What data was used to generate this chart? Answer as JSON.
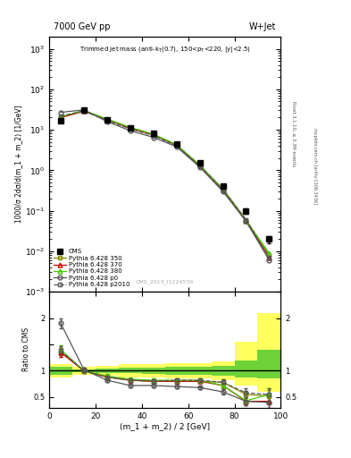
{
  "title_top": "7000 GeV pp",
  "title_right": "W+Jet",
  "ylabel_top": "1000/σ 2dσ/d(m_1 + m_2) [1/GeV]",
  "ylabel_bottom": "Ratio to CMS",
  "xlabel": "(m_1 + m_2) / 2 [GeV]",
  "watermark": "CMS_2013_I1224539",
  "rivet_text": "Rivet 3.1.10, ≥ 3.3M events",
  "mcplots_text": "mcplots.cern.ch [arXiv:1306.3436]",
  "x": [
    5,
    15,
    25,
    35,
    45,
    55,
    65,
    75,
    85,
    95
  ],
  "cms_y": [
    17,
    30,
    18,
    11,
    8,
    4.5,
    1.5,
    0.4,
    0.1,
    0.02
  ],
  "cms_yerr": [
    1.5,
    2,
    1.5,
    1.0,
    0.7,
    0.4,
    0.15,
    0.04,
    0.015,
    0.004
  ],
  "p350_y": [
    20,
    29,
    18,
    11,
    7.5,
    4.2,
    1.3,
    0.35,
    0.06,
    0.008
  ],
  "p370_y": [
    20,
    29,
    18,
    11,
    7.5,
    4.2,
    1.3,
    0.33,
    0.055,
    0.007
  ],
  "p380_y": [
    21,
    30,
    18.5,
    11.5,
    7.8,
    4.3,
    1.35,
    0.34,
    0.057,
    0.009
  ],
  "p0_y": [
    27,
    31,
    16,
    9.5,
    6.5,
    3.8,
    1.2,
    0.3,
    0.055,
    0.006
  ],
  "p2010_y": [
    22,
    29,
    17,
    10.5,
    7.2,
    4.0,
    1.3,
    0.33,
    0.06,
    0.007
  ],
  "ratio_p350": [
    1.35,
    1.0,
    0.88,
    0.82,
    0.8,
    0.8,
    0.8,
    0.78,
    0.55,
    0.52
  ],
  "ratio_p370": [
    1.35,
    1.0,
    0.88,
    0.82,
    0.8,
    0.8,
    0.8,
    0.72,
    0.42,
    0.42
  ],
  "ratio_p380": [
    1.4,
    1.0,
    0.9,
    0.84,
    0.82,
    0.82,
    0.82,
    0.72,
    0.43,
    0.55
  ],
  "ratio_p0": [
    1.9,
    1.02,
    0.82,
    0.72,
    0.72,
    0.7,
    0.68,
    0.6,
    0.42,
    0.4
  ],
  "ratio_p2010": [
    1.38,
    1.0,
    0.88,
    0.82,
    0.8,
    0.82,
    0.82,
    0.78,
    0.58,
    0.55
  ],
  "ratio_p350_err": [
    0.08,
    0.04,
    0.04,
    0.03,
    0.03,
    0.03,
    0.03,
    0.05,
    0.07,
    0.12
  ],
  "ratio_p370_err": [
    0.08,
    0.04,
    0.04,
    0.03,
    0.03,
    0.03,
    0.03,
    0.05,
    0.07,
    0.12
  ],
  "ratio_p380_err": [
    0.08,
    0.04,
    0.04,
    0.03,
    0.03,
    0.03,
    0.03,
    0.05,
    0.08,
    0.12
  ],
  "ratio_p0_err": [
    0.1,
    0.04,
    0.04,
    0.03,
    0.03,
    0.03,
    0.03,
    0.05,
    0.07,
    0.12
  ],
  "ratio_p2010_err": [
    0.08,
    0.04,
    0.04,
    0.03,
    0.03,
    0.03,
    0.03,
    0.05,
    0.08,
    0.12
  ],
  "band_x_edges": [
    0,
    10,
    20,
    30,
    40,
    50,
    60,
    70,
    80,
    90,
    100
  ],
  "band_green_lo": [
    0.93,
    0.97,
    0.96,
    0.95,
    0.94,
    0.93,
    0.92,
    0.9,
    0.87,
    0.85
  ],
  "band_green_hi": [
    1.07,
    1.03,
    1.04,
    1.05,
    1.06,
    1.07,
    1.08,
    1.1,
    1.2,
    1.4
  ],
  "band_yellow_lo": [
    0.87,
    0.92,
    0.9,
    0.88,
    0.87,
    0.86,
    0.85,
    0.82,
    0.72,
    0.6
  ],
  "band_yellow_hi": [
    1.13,
    1.08,
    1.1,
    1.12,
    1.13,
    1.14,
    1.15,
    1.18,
    1.55,
    2.1
  ],
  "color_cms": "#000000",
  "color_p350": "#888800",
  "color_p370": "#cc0000",
  "color_p380": "#44cc00",
  "color_p0": "#555555",
  "color_p2010": "#555555",
  "ylim_top_lo": 0.001,
  "ylim_top_hi": 2000,
  "xlim": [
    0,
    100
  ]
}
